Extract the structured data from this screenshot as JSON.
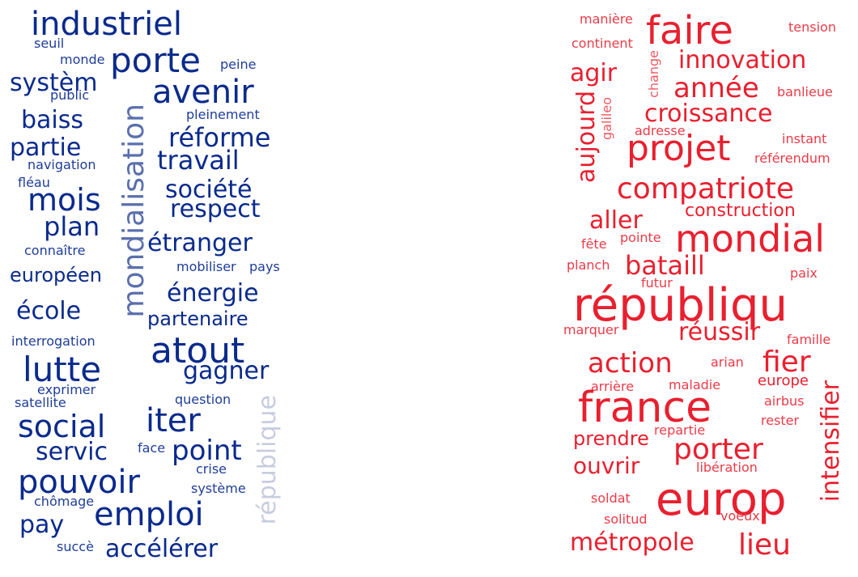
{
  "clouds": {
    "left": {
      "color_primary": "#0a2a8c",
      "words": [
        "industriel",
        "seuil",
        "monde",
        "porte",
        "peine",
        "systèm",
        "public",
        "avenir",
        "pleinement",
        "baiss",
        "mondialisation",
        "réforme",
        "partie",
        "travail",
        "navigation",
        "fléau",
        "société",
        "mois",
        "respect",
        "plan",
        "étranger",
        "connaître",
        "mobiliser",
        "pays",
        "européen",
        "énergie",
        "école",
        "partenaire",
        "interrogation",
        "atout",
        "lutte",
        "gagner",
        "exprimer",
        "satellite",
        "question",
        "social",
        "iter",
        "servic",
        "face",
        "point",
        "république",
        "crise",
        "pouvoir",
        "système",
        "chômage",
        "emploi",
        "pay",
        "succè",
        "accélérer"
      ]
    },
    "right": {
      "color_primary": "#e8202f",
      "words": [
        "manière",
        "faire",
        "tension",
        "continent",
        "change",
        "innovation",
        "agir",
        "année",
        "banlieue",
        "aujourd",
        "galileo",
        "croissance",
        "adresse",
        "instant",
        "projet",
        "référendum",
        "compatriote",
        "construction",
        "aller",
        "mondial",
        "fête",
        "pointe",
        "bataill",
        "planch",
        "paix",
        "futur",
        "républiqu",
        "marquer",
        "réussir",
        "famille",
        "action",
        "arian",
        "fier",
        "arrière",
        "maladie",
        "europe",
        "france",
        "airbus",
        "intensifier",
        "repartie",
        "rester",
        "prendre",
        "porter",
        "ouvrir",
        "libération",
        "europ",
        "soldat",
        "solitud",
        "voeux",
        "métropole",
        "lieu"
      ]
    }
  }
}
